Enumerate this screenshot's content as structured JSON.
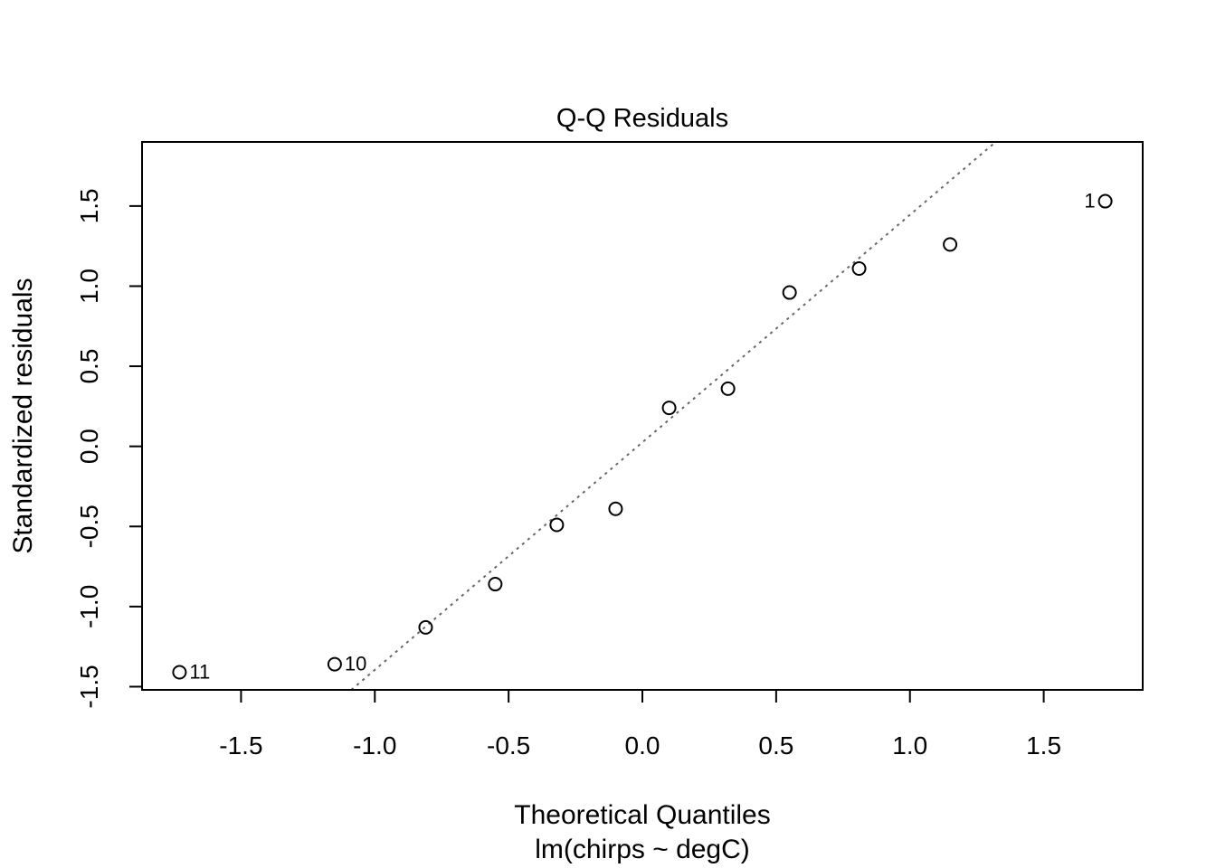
{
  "chart_data": {
    "type": "scatter",
    "title": "Q-Q Residuals",
    "xlabel": "Theoretical Quantiles",
    "xsublabel": "lm(chirps ~ degC)",
    "ylabel": "Standardized residuals",
    "xlim": [
      -1.87,
      1.87
    ],
    "ylim": [
      -1.52,
      1.9
    ],
    "xticks": [
      -1.5,
      -1.0,
      -0.5,
      0.0,
      0.5,
      1.0,
      1.5
    ],
    "xtick_labels": [
      "-1.5",
      "-1.0",
      "-0.5",
      "0.0",
      "0.5",
      "1.0",
      "1.5"
    ],
    "yticks": [
      -1.5,
      -1.0,
      -0.5,
      0.0,
      0.5,
      1.0,
      1.5
    ],
    "ytick_labels": [
      "-1.5",
      "-1.0",
      "-0.5",
      "0.0",
      "0.5",
      "1.0",
      "1.5"
    ],
    "points": [
      {
        "x": -1.73,
        "y": -1.41,
        "label": "11"
      },
      {
        "x": -1.15,
        "y": -1.36,
        "label": "10"
      },
      {
        "x": -0.81,
        "y": -1.13,
        "label": ""
      },
      {
        "x": -0.55,
        "y": -0.86,
        "label": ""
      },
      {
        "x": -0.32,
        "y": -0.49,
        "label": ""
      },
      {
        "x": -0.1,
        "y": -0.39,
        "label": ""
      },
      {
        "x": 0.1,
        "y": 0.24,
        "label": ""
      },
      {
        "x": 0.32,
        "y": 0.36,
        "label": ""
      },
      {
        "x": 0.55,
        "y": 0.96,
        "label": ""
      },
      {
        "x": 0.81,
        "y": 1.11,
        "label": ""
      },
      {
        "x": 1.15,
        "y": 1.26,
        "label": ""
      },
      {
        "x": 1.73,
        "y": 1.53,
        "label": "1"
      }
    ],
    "reference_line": {
      "intercept": 0.025,
      "slope": 1.42,
      "style": "dotted",
      "color": "#666666"
    },
    "grid": false,
    "legend": "none"
  }
}
